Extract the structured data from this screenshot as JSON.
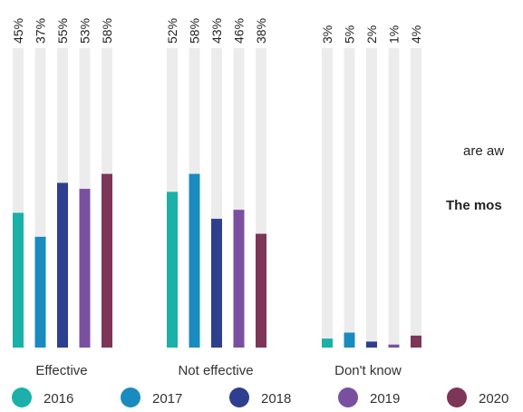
{
  "side_text": {
    "line1": "are aw",
    "line2": "The mos"
  },
  "chart_data": {
    "type": "bar",
    "ylim": [
      0,
      100
    ],
    "groups": [
      "Effective",
      "Not effective",
      "Don't know"
    ],
    "series": [
      {
        "name": "2016",
        "color": "#1bb0a8",
        "values": [
          45,
          52,
          3
        ],
        "labels": [
          "45%",
          "52%",
          "3%"
        ]
      },
      {
        "name": "2017",
        "color": "#1a8bbf",
        "values": [
          37,
          58,
          5
        ],
        "labels": [
          "37%",
          "58%",
          "5%"
        ]
      },
      {
        "name": "2018",
        "color": "#2e3f8f",
        "values": [
          55,
          43,
          2
        ],
        "labels": [
          "55%",
          "43%",
          "2%"
        ]
      },
      {
        "name": "2019",
        "color": "#7a4fa0",
        "values": [
          53,
          46,
          1
        ],
        "labels": [
          "53%",
          "46%",
          "1%"
        ]
      },
      {
        "name": "2020",
        "color": "#7d3558",
        "values": [
          58,
          38,
          4
        ],
        "labels": [
          "58%",
          "38%",
          "4%"
        ]
      }
    ],
    "track_color": "#ececec"
  }
}
